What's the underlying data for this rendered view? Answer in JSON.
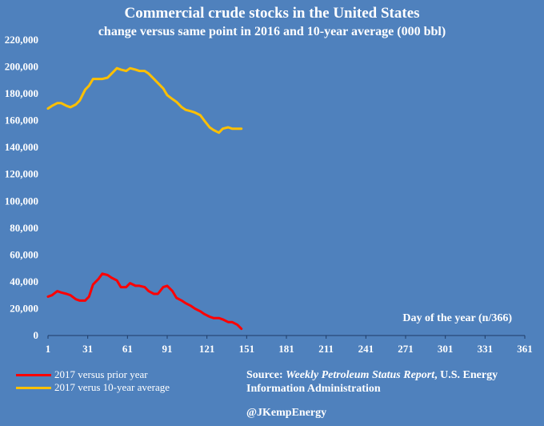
{
  "chart_data": {
    "type": "line",
    "title": "Commercial crude stocks in the United States",
    "subtitle": "change versus same point in 2016 and 10-year average (000 bbl)",
    "xlabel": "Day of the year (n/366)",
    "ylabel": "",
    "xlim": [
      1,
      361
    ],
    "ylim": [
      0,
      220000
    ],
    "xticks": [
      1,
      31,
      61,
      91,
      121,
      151,
      181,
      211,
      241,
      271,
      301,
      331,
      361
    ],
    "yticks": [
      0,
      20000,
      40000,
      60000,
      80000,
      100000,
      120000,
      140000,
      160000,
      180000,
      200000,
      220000
    ],
    "ytick_labels": [
      "0",
      "20,000",
      "40,000",
      "60,000",
      "80,000",
      "100,000",
      "120,000",
      "140,000",
      "160,000",
      "180,000",
      "200,000",
      "220,000"
    ],
    "grid": false,
    "legend_position": "bottom-left",
    "series": [
      {
        "name": "2017 versus prior year",
        "color": "#ff0000",
        "x": [
          1,
          4,
          8,
          11,
          15,
          18,
          22,
          25,
          29,
          32,
          35,
          39,
          42,
          46,
          49,
          53,
          56,
          60,
          63,
          67,
          70,
          74,
          77,
          81,
          84,
          88,
          91,
          95,
          98,
          102,
          105,
          109,
          112,
          116,
          119,
          123,
          126,
          130,
          133,
          137,
          140,
          144,
          147
        ],
        "values": [
          29000,
          30000,
          33000,
          32000,
          31000,
          30000,
          27000,
          26000,
          26000,
          29000,
          38000,
          42000,
          46000,
          45000,
          43000,
          41000,
          36000,
          36000,
          39000,
          37000,
          37000,
          36000,
          33000,
          31000,
          31000,
          36000,
          37000,
          33000,
          28000,
          26000,
          24000,
          22000,
          20000,
          18000,
          16000,
          14000,
          13000,
          13000,
          12000,
          10000,
          10000,
          8000,
          5000
        ]
      },
      {
        "name": "2017 verus 10-year average",
        "color": "#ffc000",
        "x": [
          1,
          4,
          8,
          11,
          15,
          18,
          22,
          25,
          29,
          32,
          35,
          39,
          42,
          46,
          49,
          53,
          56,
          60,
          63,
          67,
          70,
          74,
          77,
          81,
          84,
          88,
          91,
          95,
          98,
          102,
          105,
          109,
          112,
          116,
          119,
          123,
          126,
          130,
          133,
          137,
          140,
          144,
          147
        ],
        "values": [
          169000,
          171000,
          173000,
          173000,
          171000,
          170000,
          172000,
          175000,
          183000,
          186000,
          191000,
          191000,
          191000,
          192000,
          195000,
          199000,
          198000,
          197000,
          199000,
          198000,
          197000,
          197000,
          195000,
          191000,
          188000,
          184000,
          179000,
          176000,
          174000,
          170000,
          168000,
          167000,
          166000,
          164000,
          160000,
          155000,
          153000,
          151000,
          154000,
          155000,
          154000,
          154000,
          154000
        ]
      }
    ]
  },
  "legend": [
    {
      "label": "2017 versus prior year",
      "color": "#ff0000"
    },
    {
      "label": "2017 verus 10-year average",
      "color": "#ffc000"
    }
  ],
  "source": {
    "prefix": "Source:",
    "publication": "Weekly Petroleum Status Report",
    "suffix": ", U.S. Energy Information Administration"
  },
  "handle": "@JKempEnergy"
}
